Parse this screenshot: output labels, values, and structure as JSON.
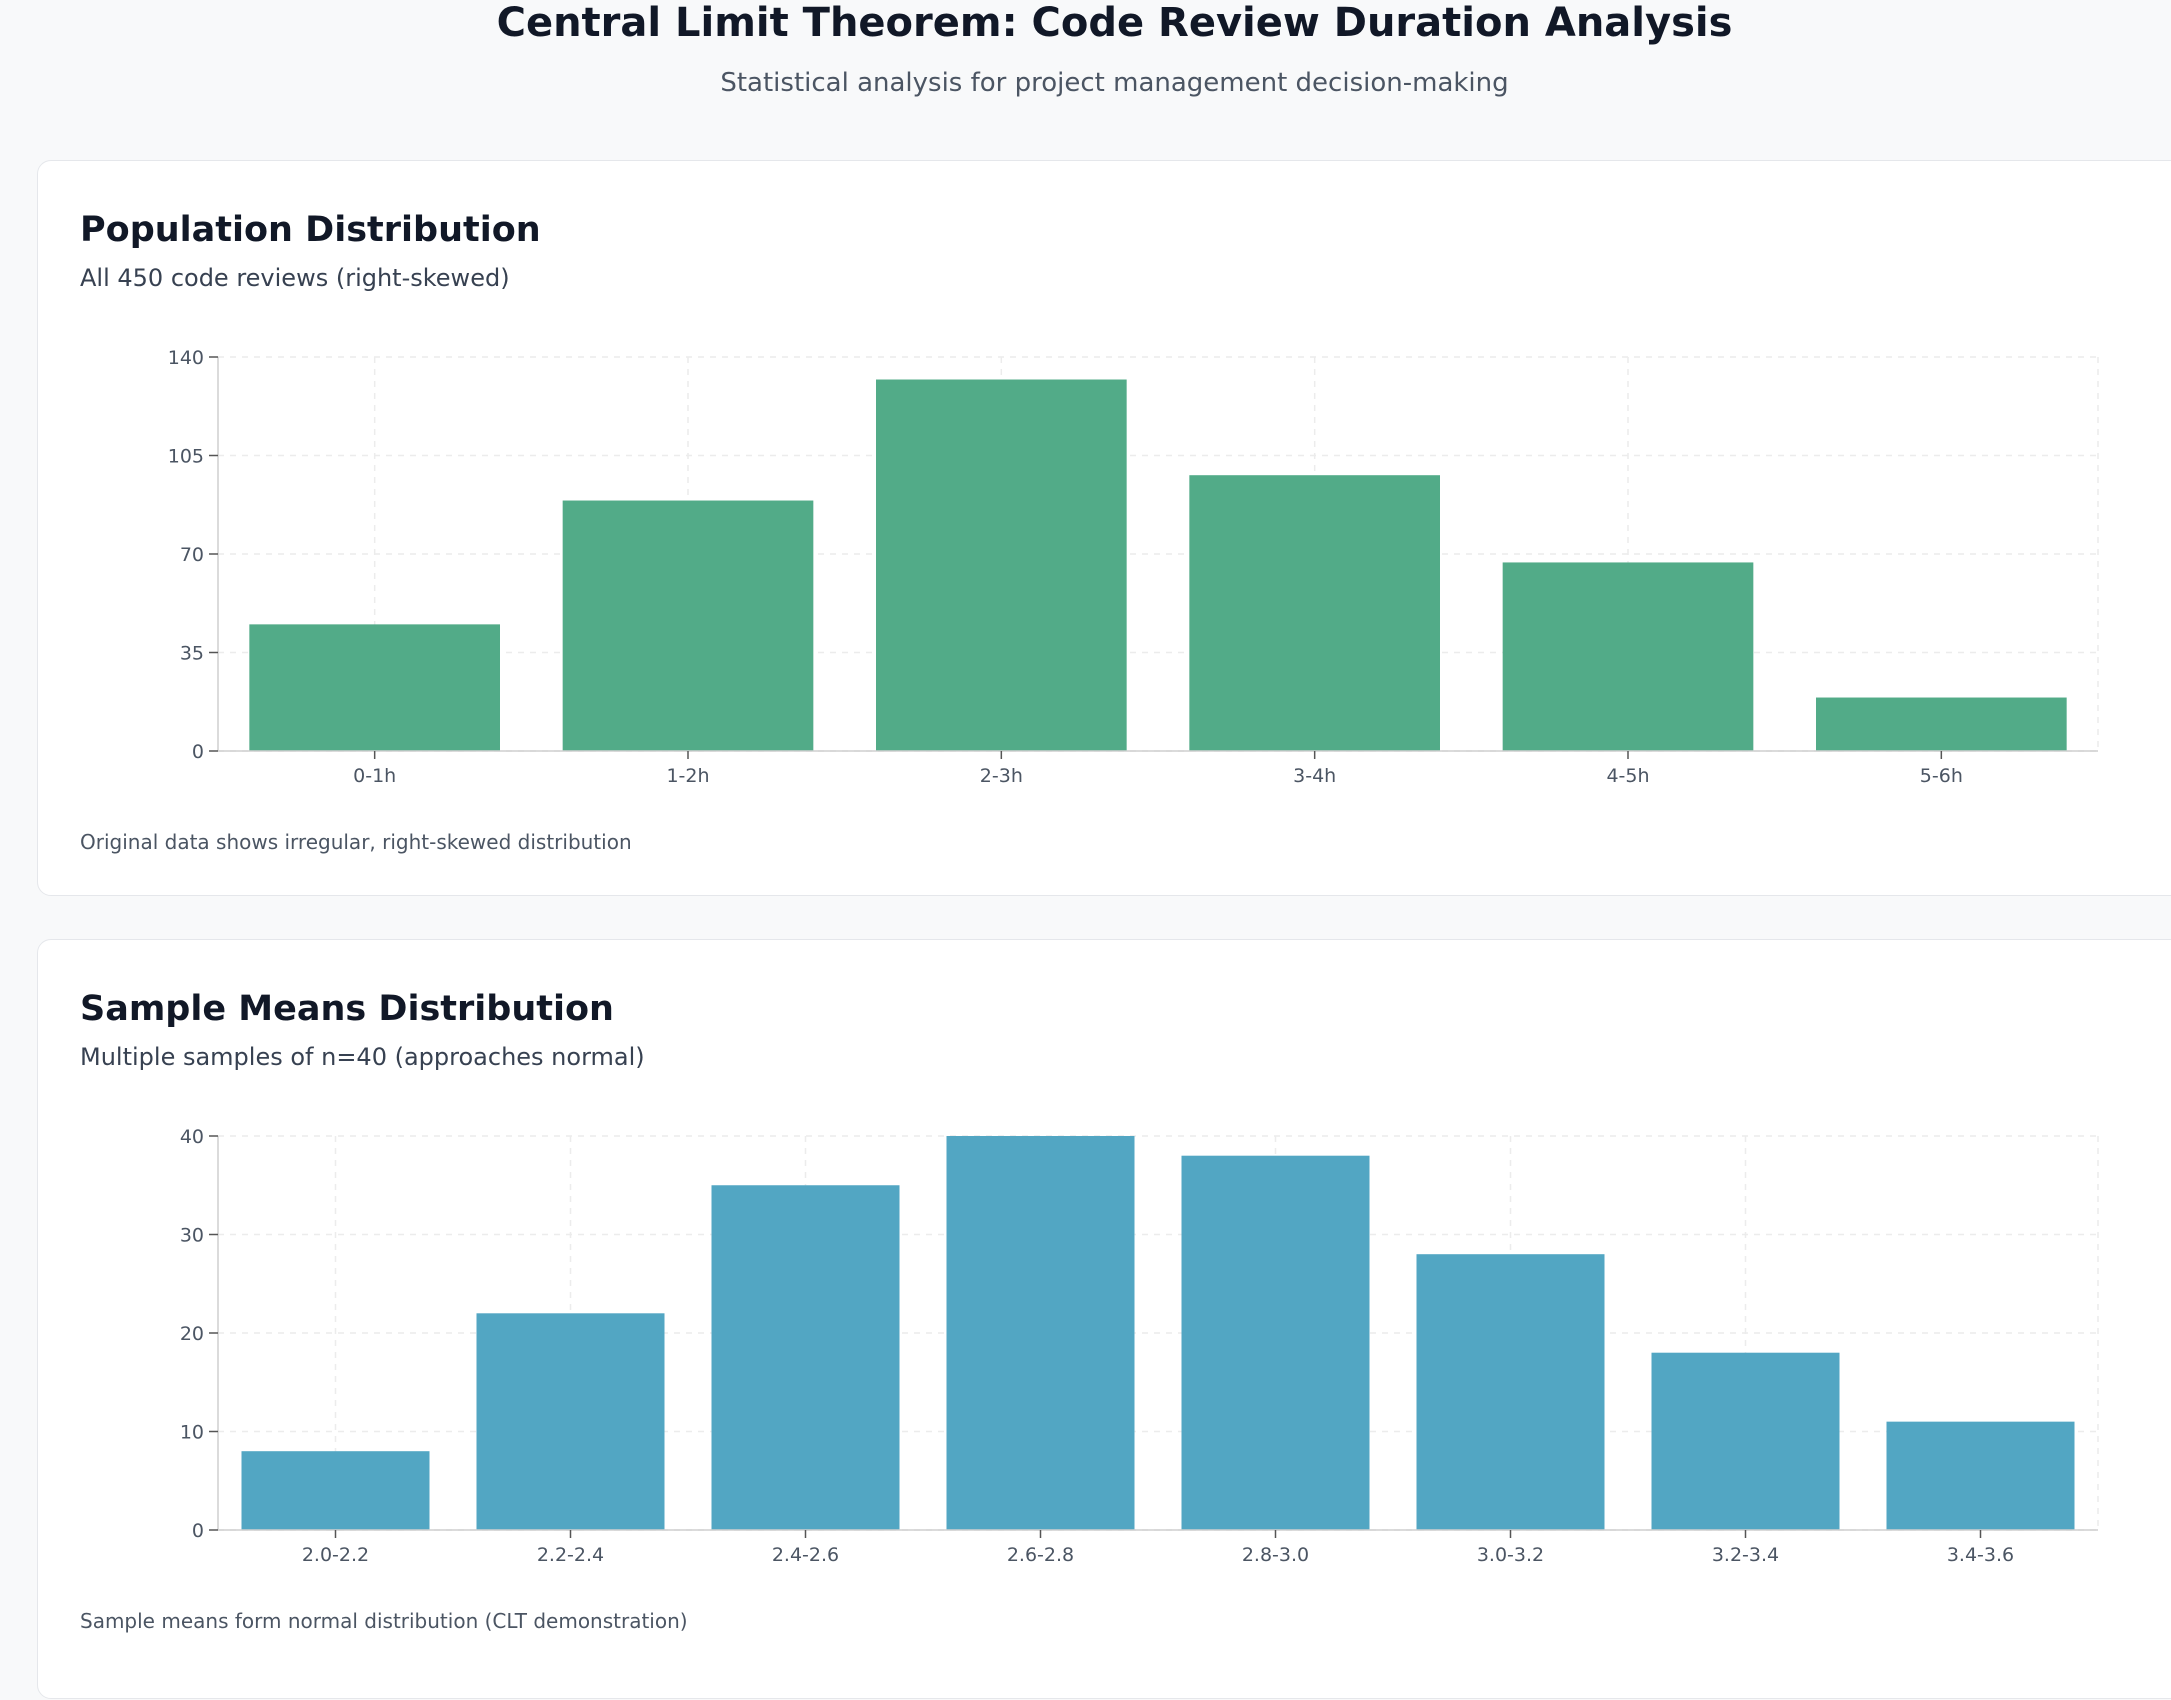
{
  "header": {
    "title": "Central Limit Theorem: Code Review Duration Analysis",
    "subtitle": "Statistical analysis for project management decision-making"
  },
  "population": {
    "title": "Population Distribution",
    "subtitle": "All 450 code reviews (right-skewed)",
    "note": "Original data shows irregular, right-skewed distribution"
  },
  "sample": {
    "title": "Sample Means Distribution",
    "subtitle": "Multiple samples of n=40 (approaches normal)",
    "note": "Sample means form normal distribution (CLT demonstration)"
  },
  "chart_data": [
    {
      "type": "bar",
      "categories": [
        "0-1h",
        "1-2h",
        "2-3h",
        "3-4h",
        "4-5h",
        "5-6h"
      ],
      "values": [
        45,
        89,
        132,
        98,
        67,
        19
      ],
      "ylim": [
        0,
        140
      ],
      "yticks": [
        0,
        35,
        70,
        105,
        140
      ],
      "grid": true,
      "color": "#52ab88"
    },
    {
      "type": "bar",
      "categories": [
        "2.0-2.2",
        "2.2-2.4",
        "2.4-2.6",
        "2.6-2.8",
        "2.8-3.0",
        "3.0-3.2",
        "3.2-3.4",
        "3.4-3.6"
      ],
      "values": [
        8,
        22,
        35,
        40,
        38,
        28,
        18,
        11
      ],
      "ylim": [
        0,
        40
      ],
      "yticks": [
        0,
        10,
        20,
        30,
        40
      ],
      "grid": true,
      "color": "#52a6c3"
    }
  ]
}
